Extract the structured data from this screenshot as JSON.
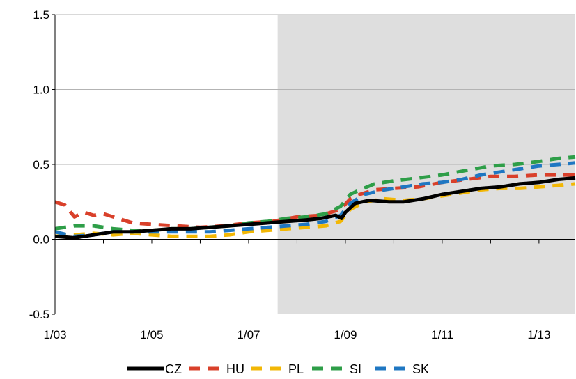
{
  "chart_data": {
    "type": "line",
    "title": "",
    "xlabel": "",
    "ylabel": "",
    "xlim": [
      2003.0,
      2013.75
    ],
    "ylim": [
      -0.5,
      1.5
    ],
    "yticks": [
      -0.5,
      0.0,
      0.5,
      1.0,
      1.5
    ],
    "ytick_labels": [
      "-0.5",
      "0.0",
      "0.5",
      "1.0",
      "1.5"
    ],
    "xticks": [
      2003,
      2005,
      2007,
      2009,
      2011,
      2013
    ],
    "xtick_labels": [
      "1/03",
      "1/05",
      "1/07",
      "1/09",
      "1/11",
      "1/13"
    ],
    "shaded_region": {
      "from": 2007.6,
      "to": 2013.75,
      "color": "#dedede"
    },
    "grid": "horizontal",
    "legend_position": "bottom",
    "series": [
      {
        "name": "CZ",
        "color": "#000000",
        "style": "solid",
        "points": [
          [
            2003.0,
            0.02
          ],
          [
            2003.4,
            0.01
          ],
          [
            2003.8,
            0.03
          ],
          [
            2004.2,
            0.05
          ],
          [
            2004.6,
            0.05
          ],
          [
            2005.0,
            0.06
          ],
          [
            2005.4,
            0.07
          ],
          [
            2005.8,
            0.07
          ],
          [
            2006.2,
            0.08
          ],
          [
            2006.6,
            0.09
          ],
          [
            2007.0,
            0.1
          ],
          [
            2007.4,
            0.11
          ],
          [
            2007.8,
            0.12
          ],
          [
            2008.2,
            0.13
          ],
          [
            2008.5,
            0.14
          ],
          [
            2008.8,
            0.16
          ],
          [
            2008.92,
            0.14
          ],
          [
            2009.0,
            0.18
          ],
          [
            2009.2,
            0.24
          ],
          [
            2009.5,
            0.26
          ],
          [
            2009.9,
            0.25
          ],
          [
            2010.2,
            0.25
          ],
          [
            2010.6,
            0.27
          ],
          [
            2011.0,
            0.3
          ],
          [
            2011.4,
            0.32
          ],
          [
            2011.8,
            0.34
          ],
          [
            2012.2,
            0.35
          ],
          [
            2012.6,
            0.37
          ],
          [
            2013.0,
            0.38
          ],
          [
            2013.4,
            0.4
          ],
          [
            2013.75,
            0.41
          ]
        ]
      },
      {
        "name": "HU",
        "color": "#d9402a",
        "style": "dashed",
        "points": [
          [
            2003.0,
            0.25
          ],
          [
            2003.2,
            0.23
          ],
          [
            2003.4,
            0.15
          ],
          [
            2003.6,
            0.18
          ],
          [
            2003.8,
            0.16
          ],
          [
            2004.0,
            0.17
          ],
          [
            2004.3,
            0.14
          ],
          [
            2004.6,
            0.11
          ],
          [
            2005.0,
            0.1
          ],
          [
            2005.5,
            0.09
          ],
          [
            2006.0,
            0.08
          ],
          [
            2006.5,
            0.09
          ],
          [
            2007.0,
            0.11
          ],
          [
            2007.5,
            0.12
          ],
          [
            2008.0,
            0.15
          ],
          [
            2008.5,
            0.16
          ],
          [
            2008.9,
            0.2
          ],
          [
            2009.1,
            0.27
          ],
          [
            2009.3,
            0.3
          ],
          [
            2009.6,
            0.33
          ],
          [
            2010.0,
            0.34
          ],
          [
            2010.5,
            0.35
          ],
          [
            2011.0,
            0.38
          ],
          [
            2011.5,
            0.4
          ],
          [
            2012.0,
            0.42
          ],
          [
            2012.5,
            0.42
          ],
          [
            2013.0,
            0.43
          ],
          [
            2013.4,
            0.43
          ],
          [
            2013.75,
            0.43
          ]
        ]
      },
      {
        "name": "PL",
        "color": "#f2b705",
        "style": "dashed",
        "points": [
          [
            2003.0,
            0.02
          ],
          [
            2003.4,
            0.03
          ],
          [
            2003.8,
            0.04
          ],
          [
            2004.2,
            0.03
          ],
          [
            2004.6,
            0.04
          ],
          [
            2005.0,
            0.03
          ],
          [
            2005.4,
            0.02
          ],
          [
            2005.8,
            0.02
          ],
          [
            2006.2,
            0.02
          ],
          [
            2006.6,
            0.03
          ],
          [
            2007.0,
            0.05
          ],
          [
            2007.4,
            0.06
          ],
          [
            2007.8,
            0.07
          ],
          [
            2008.2,
            0.08
          ],
          [
            2008.6,
            0.09
          ],
          [
            2008.9,
            0.12
          ],
          [
            2009.1,
            0.2
          ],
          [
            2009.4,
            0.25
          ],
          [
            2009.8,
            0.27
          ],
          [
            2010.2,
            0.26
          ],
          [
            2010.6,
            0.27
          ],
          [
            2011.0,
            0.29
          ],
          [
            2011.4,
            0.31
          ],
          [
            2011.8,
            0.33
          ],
          [
            2012.2,
            0.34
          ],
          [
            2012.6,
            0.34
          ],
          [
            2013.0,
            0.35
          ],
          [
            2013.4,
            0.36
          ],
          [
            2013.75,
            0.37
          ]
        ]
      },
      {
        "name": "SI",
        "color": "#2e9e48",
        "style": "dashed",
        "points": [
          [
            2003.0,
            0.07
          ],
          [
            2003.4,
            0.09
          ],
          [
            2003.8,
            0.09
          ],
          [
            2004.2,
            0.07
          ],
          [
            2004.6,
            0.06
          ],
          [
            2005.0,
            0.06
          ],
          [
            2005.4,
            0.07
          ],
          [
            2005.8,
            0.07
          ],
          [
            2006.2,
            0.08
          ],
          [
            2006.6,
            0.09
          ],
          [
            2007.0,
            0.11
          ],
          [
            2007.4,
            0.12
          ],
          [
            2007.8,
            0.14
          ],
          [
            2008.2,
            0.15
          ],
          [
            2008.6,
            0.17
          ],
          [
            2008.9,
            0.22
          ],
          [
            2009.1,
            0.3
          ],
          [
            2009.3,
            0.33
          ],
          [
            2009.6,
            0.37
          ],
          [
            2010.0,
            0.39
          ],
          [
            2010.5,
            0.41
          ],
          [
            2011.0,
            0.43
          ],
          [
            2011.5,
            0.46
          ],
          [
            2012.0,
            0.49
          ],
          [
            2012.5,
            0.5
          ],
          [
            2013.0,
            0.52
          ],
          [
            2013.4,
            0.54
          ],
          [
            2013.75,
            0.55
          ]
        ]
      },
      {
        "name": "SK",
        "color": "#1f77c2",
        "style": "dashed",
        "points": [
          [
            2003.0,
            0.05
          ],
          [
            2003.4,
            0.02
          ],
          [
            2003.8,
            0.03
          ],
          [
            2004.2,
            0.05
          ],
          [
            2004.6,
            0.05
          ],
          [
            2005.0,
            0.05
          ],
          [
            2005.4,
            0.05
          ],
          [
            2005.8,
            0.05
          ],
          [
            2006.2,
            0.05
          ],
          [
            2006.6,
            0.06
          ],
          [
            2007.0,
            0.07
          ],
          [
            2007.4,
            0.08
          ],
          [
            2007.8,
            0.09
          ],
          [
            2008.2,
            0.1
          ],
          [
            2008.6,
            0.12
          ],
          [
            2008.9,
            0.16
          ],
          [
            2009.1,
            0.24
          ],
          [
            2009.4,
            0.3
          ],
          [
            2009.8,
            0.33
          ],
          [
            2010.2,
            0.35
          ],
          [
            2010.6,
            0.37
          ],
          [
            2011.0,
            0.38
          ],
          [
            2011.4,
            0.4
          ],
          [
            2011.8,
            0.43
          ],
          [
            2012.2,
            0.45
          ],
          [
            2012.6,
            0.47
          ],
          [
            2013.0,
            0.49
          ],
          [
            2013.4,
            0.5
          ],
          [
            2013.75,
            0.51
          ]
        ]
      }
    ]
  }
}
